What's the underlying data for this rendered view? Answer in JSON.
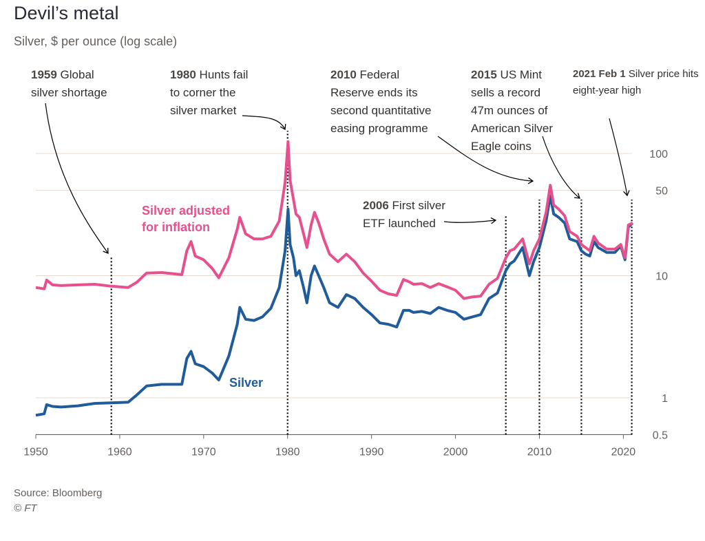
{
  "title": "Devil’s metal",
  "subtitle": "Silver, $ per ounce (log scale)",
  "source": "Source: Bloomberg",
  "copyright": "© FT",
  "colors": {
    "silver": "#1f5c99",
    "inflation": "#e6508c",
    "grid": "#e8d8cc",
    "axis": "#66605c",
    "text": "#66605c"
  },
  "annotations": [
    {
      "year": 1959,
      "bold": "1959",
      "lines": [
        "Global",
        "silver shortage"
      ]
    },
    {
      "year": 1980,
      "bold": "1980",
      "lines": [
        "Hunts fail",
        "to corner the",
        "silver market"
      ]
    },
    {
      "year": 2006,
      "bold": "2006",
      "lines": [
        "First silver",
        "ETF launched"
      ]
    },
    {
      "year": 2010,
      "bold": "2010",
      "lines": [
        "Federal",
        "Reserve ends its",
        "second quantitative",
        "easing programme"
      ]
    },
    {
      "year": 2015,
      "bold": "2015",
      "lines": [
        "US Mint",
        "sells a record",
        "47m ounces of",
        "American Silver",
        "Eagle coins"
      ]
    },
    {
      "year": 2021,
      "bold": "2021 Feb 1",
      "lines": [
        "Silver price hits",
        "eight-year high"
      ]
    }
  ],
  "chart_data": {
    "type": "line",
    "title": "Devil’s metal",
    "subtitle": "Silver, $ per ounce (log scale)",
    "y_scale": "log",
    "xlim": [
      1950,
      2021.5
    ],
    "ylim": [
      0.5,
      150
    ],
    "x_ticks": [
      1950,
      1960,
      1970,
      1980,
      1990,
      2000,
      2010,
      2020
    ],
    "y_ticks": [
      0.5,
      1,
      10,
      50,
      100
    ],
    "grid": true,
    "series": [
      {
        "name": "Silver",
        "points": [
          [
            1950,
            0.72
          ],
          [
            1951,
            0.74
          ],
          [
            1951.3,
            0.88
          ],
          [
            1952,
            0.85
          ],
          [
            1953,
            0.84
          ],
          [
            1955,
            0.86
          ],
          [
            1957,
            0.9
          ],
          [
            1959,
            0.91
          ],
          [
            1961,
            0.92
          ],
          [
            1962,
            1.05
          ],
          [
            1963.2,
            1.25
          ],
          [
            1965,
            1.29
          ],
          [
            1967.4,
            1.29
          ],
          [
            1968,
            2.1
          ],
          [
            1968.5,
            2.4
          ],
          [
            1969,
            1.9
          ],
          [
            1970,
            1.8
          ],
          [
            1971,
            1.6
          ],
          [
            1971.8,
            1.4
          ],
          [
            1973,
            2.2
          ],
          [
            1974,
            4.0
          ],
          [
            1974.3,
            5.5
          ],
          [
            1975,
            4.4
          ],
          [
            1976,
            4.3
          ],
          [
            1977,
            4.6
          ],
          [
            1978,
            5.4
          ],
          [
            1979,
            8.0
          ],
          [
            1979.7,
            16
          ],
          [
            1980.05,
            35
          ],
          [
            1980.3,
            18
          ],
          [
            1980.7,
            14
          ],
          [
            1981,
            10
          ],
          [
            1981.4,
            11
          ],
          [
            1981.9,
            8.0
          ],
          [
            1982.3,
            6.0
          ],
          [
            1982.8,
            10
          ],
          [
            1983.2,
            12
          ],
          [
            1983.7,
            10
          ],
          [
            1984.3,
            8.0
          ],
          [
            1985,
            6.0
          ],
          [
            1986,
            5.5
          ],
          [
            1987,
            7.0
          ],
          [
            1988,
            6.5
          ],
          [
            1989,
            5.5
          ],
          [
            1990,
            4.8
          ],
          [
            1991,
            4.1
          ],
          [
            1992,
            4.0
          ],
          [
            1993,
            3.8
          ],
          [
            1993.8,
            5.2
          ],
          [
            1994.5,
            5.2
          ],
          [
            1995,
            5.0
          ],
          [
            1996,
            5.1
          ],
          [
            1997,
            4.9
          ],
          [
            1998,
            5.5
          ],
          [
            1999,
            5.2
          ],
          [
            2000,
            5.0
          ],
          [
            2001,
            4.4
          ],
          [
            2002,
            4.6
          ],
          [
            2003,
            4.8
          ],
          [
            2004,
            6.5
          ],
          [
            2005,
            7.2
          ],
          [
            2006,
            11
          ],
          [
            2006.5,
            12.5
          ],
          [
            2007,
            13.2
          ],
          [
            2008,
            17
          ],
          [
            2008.8,
            10
          ],
          [
            2009.3,
            13
          ],
          [
            2010,
            17
          ],
          [
            2010.8,
            28
          ],
          [
            2011.3,
            45
          ],
          [
            2011.7,
            32
          ],
          [
            2012.3,
            30
          ],
          [
            2013,
            27
          ],
          [
            2013.6,
            20
          ],
          [
            2014.5,
            19
          ],
          [
            2015,
            16
          ],
          [
            2015.5,
            15
          ],
          [
            2016,
            14.5
          ],
          [
            2016.5,
            19
          ],
          [
            2017,
            17
          ],
          [
            2018,
            15.5
          ],
          [
            2019,
            15.5
          ],
          [
            2019.7,
            17.5
          ],
          [
            2020.2,
            13.5
          ],
          [
            2020.6,
            25
          ],
          [
            2021.1,
            27
          ]
        ]
      },
      {
        "name": "Silver adjusted for inflation",
        "points": [
          [
            1950,
            8.0
          ],
          [
            1951,
            7.8
          ],
          [
            1951.3,
            9.2
          ],
          [
            1952,
            8.4
          ],
          [
            1953,
            8.3
          ],
          [
            1955,
            8.4
          ],
          [
            1957,
            8.5
          ],
          [
            1959,
            8.2
          ],
          [
            1961,
            8.0
          ],
          [
            1962,
            8.8
          ],
          [
            1963.2,
            10.5
          ],
          [
            1965,
            10.6
          ],
          [
            1967.4,
            10.2
          ],
          [
            1968,
            16
          ],
          [
            1968.5,
            19
          ],
          [
            1969,
            14.5
          ],
          [
            1970,
            13.5
          ],
          [
            1971,
            11.5
          ],
          [
            1971.8,
            9.6
          ],
          [
            1973,
            14
          ],
          [
            1974,
            24
          ],
          [
            1974.3,
            30
          ],
          [
            1975,
            22
          ],
          [
            1976,
            20
          ],
          [
            1977,
            20
          ],
          [
            1978,
            21
          ],
          [
            1979,
            28
          ],
          [
            1979.7,
            58
          ],
          [
            1980.05,
            125
          ],
          [
            1980.3,
            60
          ],
          [
            1980.7,
            42
          ],
          [
            1981,
            32
          ],
          [
            1981.4,
            30
          ],
          [
            1981.9,
            22
          ],
          [
            1982.3,
            17
          ],
          [
            1982.8,
            26
          ],
          [
            1983.2,
            33
          ],
          [
            1983.7,
            27
          ],
          [
            1984.3,
            20
          ],
          [
            1985,
            15
          ],
          [
            1986,
            13
          ],
          [
            1987,
            15
          ],
          [
            1988,
            13
          ],
          [
            1989,
            10.5
          ],
          [
            1990,
            9.0
          ],
          [
            1991,
            7.6
          ],
          [
            1992,
            7.1
          ],
          [
            1993,
            6.9
          ],
          [
            1993.8,
            9.3
          ],
          [
            1994.5,
            8.9
          ],
          [
            1995,
            8.5
          ],
          [
            1996,
            8.6
          ],
          [
            1997,
            8.0
          ],
          [
            1998,
            8.6
          ],
          [
            1999,
            8.1
          ],
          [
            2000,
            7.6
          ],
          [
            2001,
            6.5
          ],
          [
            2002,
            6.7
          ],
          [
            2003,
            6.8
          ],
          [
            2004,
            8.5
          ],
          [
            2005,
            9.5
          ],
          [
            2006,
            14
          ],
          [
            2006.5,
            16
          ],
          [
            2007,
            16.5
          ],
          [
            2008,
            20
          ],
          [
            2008.8,
            12.5
          ],
          [
            2009.3,
            16
          ],
          [
            2010,
            20
          ],
          [
            2010.8,
            33
          ],
          [
            2011.3,
            55
          ],
          [
            2011.7,
            38
          ],
          [
            2012.3,
            35
          ],
          [
            2013,
            31
          ],
          [
            2013.6,
            23
          ],
          [
            2014.5,
            21
          ],
          [
            2015,
            18
          ],
          [
            2015.5,
            17
          ],
          [
            2016,
            16
          ],
          [
            2016.5,
            21
          ],
          [
            2017,
            18.5
          ],
          [
            2018,
            16.5
          ],
          [
            2019,
            16.5
          ],
          [
            2019.7,
            18
          ],
          [
            2020.2,
            14
          ],
          [
            2020.6,
            26
          ],
          [
            2021.1,
            27
          ]
        ]
      }
    ]
  }
}
